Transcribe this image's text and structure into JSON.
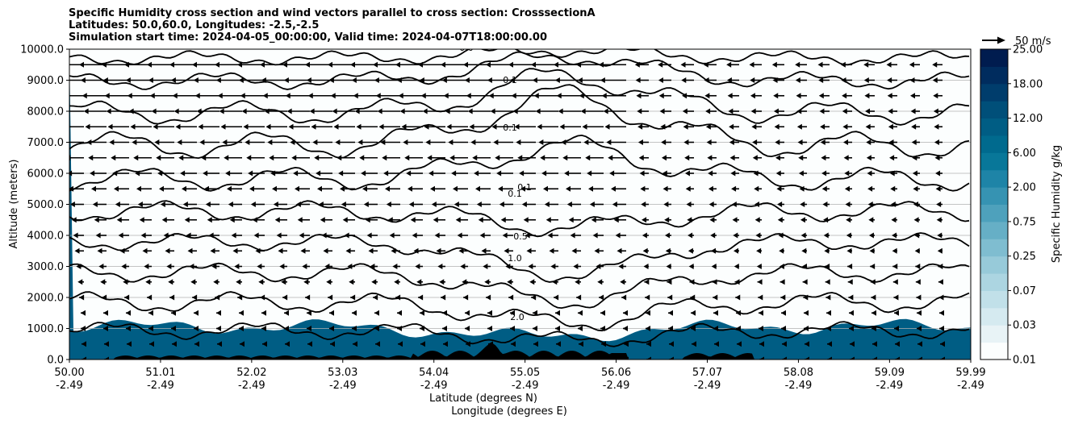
{
  "chart_data": {
    "type": "heatmap",
    "title_lines": [
      "Specific Humidity cross section and wind vectors parallel to cross section: CrosssectionA",
      "Latitudes: 50.0,60.0, Longitudes: -2.5,-2.5",
      "Simulation start time: 2024-04-05_00:00:00, Valid time: 2024-04-07T18:00:00.00"
    ],
    "ylabel": "Altitude (meters)",
    "xlabel_lines": [
      "Latitude (degrees N)",
      "Longitude (degrees E)"
    ],
    "ylim": [
      0,
      10000
    ],
    "xlim": [
      50.0,
      59.99
    ],
    "y_ticks": [
      "0.0",
      "1000.0",
      "2000.0",
      "3000.0",
      "4000.0",
      "5000.0",
      "6000.0",
      "7000.0",
      "8000.0",
      "9000.0",
      "10000.0"
    ],
    "x_ticks": [
      {
        "lat": "50.00",
        "lon": "-2.49"
      },
      {
        "lat": "51.01",
        "lon": "-2.49"
      },
      {
        "lat": "52.02",
        "lon": "-2.49"
      },
      {
        "lat": "53.03",
        "lon": "-2.49"
      },
      {
        "lat": "54.04",
        "lon": "-2.49"
      },
      {
        "lat": "55.05",
        "lon": "-2.49"
      },
      {
        "lat": "56.06",
        "lon": "-2.49"
      },
      {
        "lat": "57.07",
        "lon": "-2.49"
      },
      {
        "lat": "58.08",
        "lon": "-2.49"
      },
      {
        "lat": "59.09",
        "lon": "-2.49"
      },
      {
        "lat": "59.99",
        "lon": "-2.49"
      }
    ],
    "colorbar": {
      "label": "Specific Humidity g/kg",
      "levels": [
        "0.01",
        "0.03",
        "0.07",
        "0.25",
        "0.75",
        "2.00",
        "6.00",
        "12.00",
        "18.00",
        "25.00"
      ],
      "colors": [
        "#fcfefe",
        "#e8f3f6",
        "#d5eaf0",
        "#c1e0e9",
        "#acd5e1",
        "#97cad9",
        "#7fbdd0",
        "#66afc6",
        "#4ea1bc",
        "#3693b2",
        "#1e84a7",
        "#087799",
        "#006a8e",
        "#005d84",
        "#004f79",
        "#003d6c",
        "#002c5e",
        "#001c4f"
      ]
    },
    "contour_labels": [
      "0.0",
      "0.1",
      "0.1",
      "0.1",
      "0.1",
      "0.5",
      "1.0",
      "2.0"
    ],
    "quiver_key": "50 m/s",
    "grid": "horizontal"
  }
}
